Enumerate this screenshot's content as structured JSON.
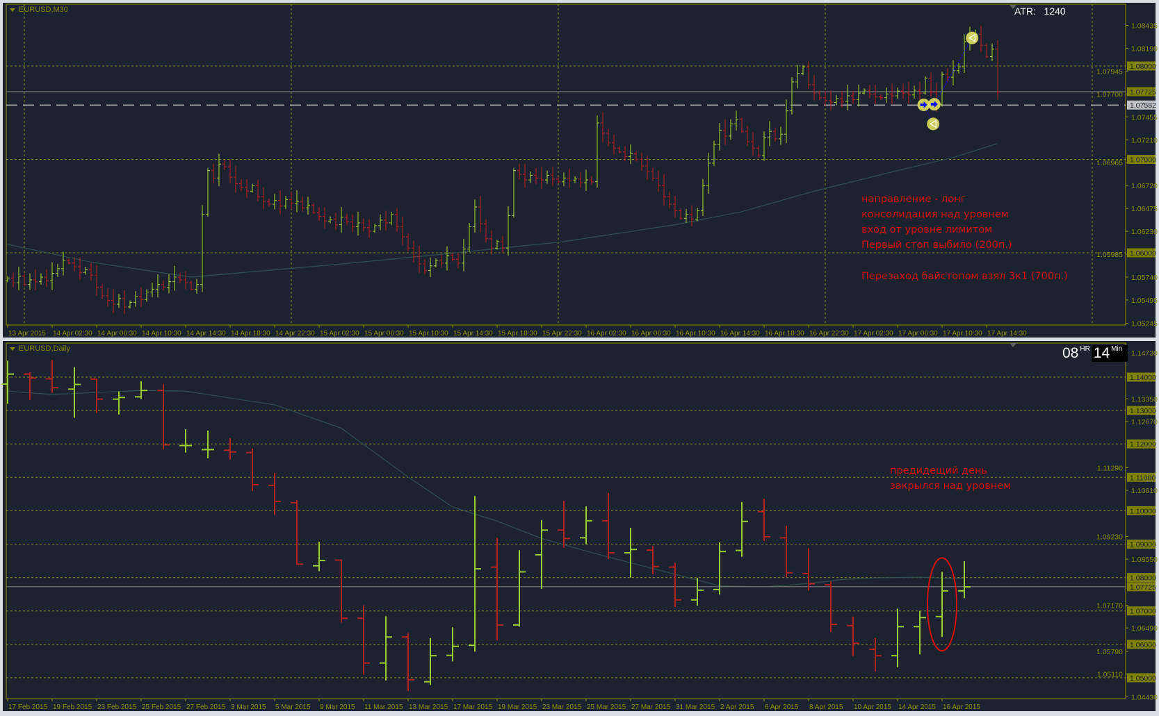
{
  "colors": {
    "window_bg": "#d8dde6",
    "panel_bg": "#1c2230",
    "frame": "#808000",
    "grid": "#8a8a20",
    "axis_text": "#8f8f00",
    "bull": "#9acd32",
    "bear": "#b22222",
    "ma": "#2f4f4f",
    "price_line": "#7a7a7a",
    "level_box": "#808000",
    "level_box_text": "#1c2230",
    "stop_line": "#d0d0d0",
    "stop_box": "#c0c0c0",
    "annotation": "#d41010",
    "trade_marker": "#e0e060",
    "trade_line": "#1010ff"
  },
  "top_chart": {
    "symbol_label": "EURUSD,M30",
    "atr_label": "ATR:",
    "atr_value": "1240",
    "annotations": [
      "направление - лонг",
      "консолидация над уровнем",
      "вход от уровне лимитом",
      "Первый стоп выбило (200п.)",
      "Перезаход байстопом взял 3к1 (700п.)"
    ],
    "price_ticks": [
      "1.08435",
      "1.08190",
      "1.07945",
      "1.07700",
      "1.07455",
      "1.07210",
      "1.06965",
      "1.06720",
      "1.06475",
      "1.06230",
      "1.05985",
      "1.05740",
      "1.05495",
      "1.05245"
    ],
    "level_boxes": [
      "1.08000",
      "1.07725",
      "1.07000",
      "1.06000"
    ],
    "stop_box": "1.07582",
    "time_labels": [
      "13 Apr 2015",
      "14 Apr 02:30",
      "14 Apr 06:30",
      "14 Apr 10:30",
      "14 Apr 14:30",
      "14 Apr 18:30",
      "14 Apr 22:30",
      "15 Apr 02:30",
      "15 Apr 06:30",
      "15 Apr 10:30",
      "15 Apr 14:30",
      "15 Apr 18:30",
      "15 Apr 22:30",
      "16 Apr 02:30",
      "16 Apr 06:30",
      "16 Apr 10:30",
      "16 Apr 14:30",
      "16 Apr 18:30",
      "16 Apr 22:30",
      "17 Apr 02:30",
      "17 Apr 06:30",
      "17 Apr 10:30",
      "17 Apr 14:30"
    ],
    "chart_data": {
      "type": "ohlc-bar",
      "timeframe": "M30",
      "ylim": [
        1.05245,
        1.08435
      ],
      "levels_dotted": [
        1.08,
        1.07,
        1.06
      ],
      "current_price": 1.07725,
      "stop_level": 1.07582,
      "day_separator_bars": [
        3,
        51,
        99,
        147,
        195
      ],
      "first_open": 1.057,
      "closes": [
        1.0573,
        1.0568,
        1.0575,
        1.0566,
        1.0571,
        1.0569,
        1.0574,
        1.057,
        1.0578,
        1.0583,
        1.0592,
        1.0589,
        1.0585,
        1.0579,
        1.0582,
        1.0576,
        1.0563,
        1.0554,
        1.0549,
        1.0545,
        1.0551,
        1.0542,
        1.0547,
        1.0553,
        1.055,
        1.0558,
        1.0561,
        1.0566,
        1.0563,
        1.0569,
        1.0574,
        1.0571,
        1.0568,
        1.0561,
        1.0566,
        1.0641,
        1.0688,
        1.068,
        1.0695,
        1.0692,
        1.0681,
        1.0674,
        1.067,
        1.0666,
        1.0672,
        1.066,
        1.0655,
        1.0652,
        1.0656,
        1.065,
        1.0657,
        1.0653,
        1.0655,
        1.0648,
        1.0651,
        1.0643,
        1.0639,
        1.0634,
        1.0636,
        1.063,
        1.0638,
        1.0633,
        1.0628,
        1.0632,
        1.0627,
        1.0623,
        1.0629,
        1.0635,
        1.0632,
        1.0641,
        1.0628,
        1.0617,
        1.0605,
        1.0596,
        1.0588,
        1.0581,
        1.0586,
        1.0592,
        1.0589,
        1.0597,
        1.0593,
        1.0589,
        1.0604,
        1.0628,
        1.0649,
        1.0631,
        1.0615,
        1.0605,
        1.0612,
        1.0605,
        1.064,
        1.0688,
        1.0684,
        1.0678,
        1.0683,
        1.068,
        1.0678,
        1.0683,
        1.0679,
        1.0676,
        1.068,
        1.0677,
        1.0679,
        1.0675,
        1.0678,
        1.0676,
        1.0739,
        1.0728,
        1.0718,
        1.0712,
        1.0708,
        1.0703,
        1.0706,
        1.07,
        1.0693,
        1.0687,
        1.068,
        1.0672,
        1.066,
        1.0652,
        1.0645,
        1.0637,
        1.0641,
        1.0636,
        1.0645,
        1.0672,
        1.0696,
        1.0716,
        1.0731,
        1.0725,
        1.0738,
        1.0743,
        1.073,
        1.0719,
        1.0712,
        1.0704,
        1.0723,
        1.073,
        1.0722,
        1.0727,
        1.0752,
        1.0783,
        1.0792,
        1.0799,
        1.078,
        1.0771,
        1.0766,
        1.0763,
        1.0761,
        1.0765,
        1.0762,
        1.0768,
        1.0764,
        1.0771,
        1.0774,
        1.077,
        1.0767,
        1.0766,
        1.077,
        1.0768,
        1.0773,
        1.0771,
        1.0769,
        1.0774,
        1.0771,
        1.0787,
        1.0772,
        1.0759,
        1.0791,
        1.0788,
        1.0795,
        1.0799,
        1.0826,
        1.083,
        1.0834,
        1.0822,
        1.081,
        1.0818,
        1.0772
      ],
      "moving_average": [
        [
          0,
          1.0609
        ],
        [
          15,
          1.059
        ],
        [
          33,
          1.0574
        ],
        [
          60,
          1.0588
        ],
        [
          79,
          1.0599
        ],
        [
          100,
          1.0612
        ],
        [
          120,
          1.063
        ],
        [
          132,
          1.0644
        ],
        [
          145,
          1.0666
        ],
        [
          160,
          1.0688
        ],
        [
          170,
          1.0702
        ],
        [
          178,
          1.0717
        ]
      ],
      "trade_markers": [
        {
          "bar": 164.7,
          "price": 1.07584,
          "kind": "entry"
        },
        {
          "bar": 166.6,
          "price": 1.0759,
          "kind": "entry"
        },
        {
          "bar": 166.4,
          "price": 1.0738,
          "kind": "exit"
        },
        {
          "bar": 173.4,
          "price": 1.083,
          "kind": "exit"
        }
      ]
    }
  },
  "bottom_chart": {
    "symbol_label": "EURUSD,Daily",
    "timer": {
      "hours": "08",
      "hours_unit": "HR",
      "minutes": "14",
      "minutes_unit": "Min"
    },
    "annotations": [
      "предидещий день",
      "закрылся над уровнем"
    ],
    "price_ticks": [
      "1.14730",
      "1.13350",
      "1.12670",
      "1.11290",
      "1.10610",
      "1.09230",
      "1.08550",
      "1.07170",
      "1.06490",
      "1.05790",
      "1.05110",
      "1.04430"
    ],
    "level_boxes": [
      "1.14000",
      "1.13000",
      "1.12000",
      "1.11000",
      "1.10000",
      "1.09000",
      "1.08000",
      "1.07725",
      "1.07000",
      "1.06000",
      "1.05000"
    ],
    "time_labels": [
      "17 Feb 2015",
      "19 Feb 2015",
      "23 Feb 2015",
      "25 Feb 2015",
      "27 Feb 2015",
      "3 Mar 2015",
      "5 Mar 2015",
      "9 Mar 2015",
      "11 Mar 2015",
      "13 Mar 2015",
      "17 Mar 2015",
      "19 Mar 2015",
      "23 Mar 2015",
      "25 Mar 2015",
      "27 Mar 2015",
      "31 Mar 2015",
      "2 Apr 2015",
      "6 Apr 2015",
      "8 Apr 2015",
      "10 Apr 2015",
      "14 Apr 2015",
      "16 Apr 2015"
    ],
    "chart_data": {
      "type": "ohlc-bar",
      "timeframe": "Daily",
      "ylim": [
        1.0443,
        1.1473
      ],
      "levels_dotted": [
        1.14,
        1.13,
        1.12,
        1.11,
        1.1,
        1.09,
        1.08,
        1.07,
        1.06,
        1.05
      ],
      "current_price": 1.07725,
      "highlighted_bar": 42,
      "bars": [
        [
          1.1379,
          1.1449,
          1.132,
          1.1409
        ],
        [
          1.1409,
          1.1415,
          1.1332,
          1.1397
        ],
        [
          1.1395,
          1.1451,
          1.1353,
          1.1368
        ],
        [
          1.1364,
          1.143,
          1.1278,
          1.1378
        ],
        [
          1.1394,
          1.1395,
          1.1292,
          1.1334
        ],
        [
          1.1334,
          1.1357,
          1.1288,
          1.1339
        ],
        [
          1.1341,
          1.1388,
          1.1334,
          1.136
        ],
        [
          1.136,
          1.138,
          1.1183,
          1.1197
        ],
        [
          1.1195,
          1.1244,
          1.1174,
          1.1195
        ],
        [
          1.1183,
          1.124,
          1.1157,
          1.1183
        ],
        [
          1.1181,
          1.1217,
          1.1153,
          1.1176
        ],
        [
          1.1174,
          1.1186,
          1.1059,
          1.1078
        ],
        [
          1.1076,
          1.1113,
          1.0987,
          1.1028
        ],
        [
          1.1024,
          1.1032,
          1.0838,
          1.084
        ],
        [
          1.0835,
          1.0907,
          1.0819,
          1.0851
        ],
        [
          1.0852,
          1.0854,
          1.0665,
          1.0678
        ],
        [
          1.0678,
          1.0717,
          1.0509,
          1.0544
        ],
        [
          1.0544,
          1.0684,
          1.0492,
          1.0622
        ],
        [
          1.0622,
          1.0634,
          1.046,
          1.0494
        ],
        [
          1.0488,
          1.0619,
          1.0478,
          1.0566
        ],
        [
          1.0567,
          1.0651,
          1.0549,
          1.0594
        ],
        [
          1.0597,
          1.1044,
          1.0578,
          1.0826
        ],
        [
          1.0831,
          1.0919,
          1.0612,
          1.0658
        ],
        [
          1.0658,
          1.0882,
          1.0653,
          1.0817
        ],
        [
          1.0868,
          1.0972,
          1.0766,
          1.0942
        ],
        [
          1.0942,
          1.103,
          1.0889,
          1.0917
        ],
        [
          1.0919,
          1.1013,
          1.0899,
          1.097
        ],
        [
          1.097,
          1.1053,
          1.0855,
          1.0874
        ],
        [
          1.0874,
          1.0949,
          1.08,
          1.0884
        ],
        [
          1.0882,
          1.0894,
          1.081,
          1.0833
        ],
        [
          1.0831,
          1.0844,
          1.0712,
          1.0733
        ],
        [
          1.0733,
          1.0799,
          1.0716,
          1.0762
        ],
        [
          1.0764,
          1.0905,
          1.0749,
          1.0878
        ],
        [
          1.0881,
          1.1026,
          1.0862,
          1.0968
        ],
        [
          1.0997,
          1.1036,
          1.091,
          1.0922
        ],
        [
          1.0919,
          1.0955,
          1.0801,
          1.0814
        ],
        [
          1.0812,
          1.0888,
          1.0761,
          1.0781
        ],
        [
          1.0778,
          1.0788,
          1.0637,
          1.066
        ],
        [
          1.0656,
          1.0683,
          1.0565,
          1.0603
        ],
        [
          1.0585,
          1.0619,
          1.0518,
          1.0566
        ],
        [
          1.0566,
          1.0707,
          1.0531,
          1.0653
        ],
        [
          1.0653,
          1.07,
          1.057,
          1.068
        ],
        [
          1.0683,
          1.0817,
          1.0622,
          1.076
        ],
        [
          1.076,
          1.0849,
          1.0738,
          1.0772
        ]
      ],
      "moving_average": [
        [
          0,
          1.1358
        ],
        [
          2,
          1.1348
        ],
        [
          6,
          1.136
        ],
        [
          8,
          1.1358
        ],
        [
          12,
          1.1317
        ],
        [
          15,
          1.1247
        ],
        [
          18,
          1.1101
        ],
        [
          20,
          1.1011
        ],
        [
          22,
          1.0969
        ],
        [
          24,
          1.0917
        ],
        [
          26,
          1.0879
        ],
        [
          28,
          1.0844
        ],
        [
          30,
          1.081
        ],
        [
          32,
          1.0775
        ],
        [
          34,
          1.0772
        ],
        [
          36,
          1.0782
        ],
        [
          37.5,
          1.0794
        ],
        [
          39,
          1.0799
        ],
        [
          41,
          1.0801
        ],
        [
          42.5,
          1.0797
        ],
        [
          43,
          1.0798
        ]
      ]
    }
  }
}
